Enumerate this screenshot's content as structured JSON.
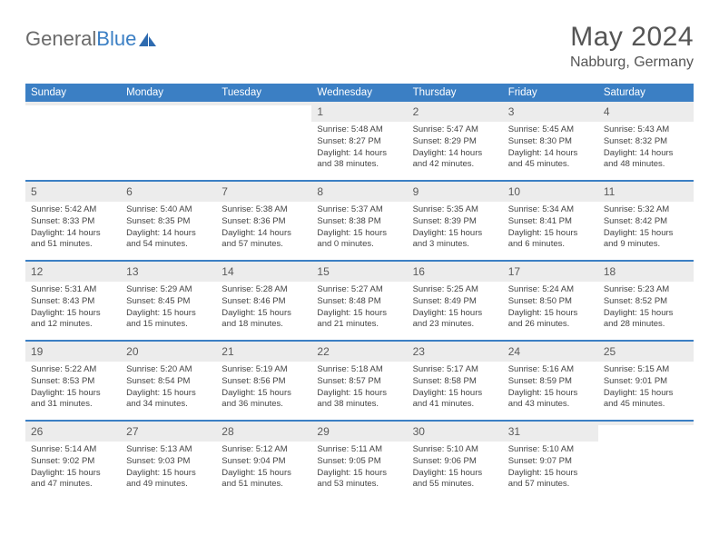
{
  "logo": {
    "text_general": "General",
    "text_blue": "Blue"
  },
  "title": "May 2024",
  "location": "Nabburg, Germany",
  "weekdays": [
    "Sunday",
    "Monday",
    "Tuesday",
    "Wednesday",
    "Thursday",
    "Friday",
    "Saturday"
  ],
  "colors": {
    "header_bg": "#3b7fc4",
    "row_divider": "#3b7fc4",
    "daynum_bg": "#ececec",
    "text": "#3a3a3a"
  },
  "weeks": [
    [
      {
        "n": "",
        "lines": [
          "",
          "",
          "",
          ""
        ]
      },
      {
        "n": "",
        "lines": [
          "",
          "",
          "",
          ""
        ]
      },
      {
        "n": "",
        "lines": [
          "",
          "",
          "",
          ""
        ]
      },
      {
        "n": "1",
        "lines": [
          "Sunrise: 5:48 AM",
          "Sunset: 8:27 PM",
          "Daylight: 14 hours",
          "and 38 minutes."
        ]
      },
      {
        "n": "2",
        "lines": [
          "Sunrise: 5:47 AM",
          "Sunset: 8:29 PM",
          "Daylight: 14 hours",
          "and 42 minutes."
        ]
      },
      {
        "n": "3",
        "lines": [
          "Sunrise: 5:45 AM",
          "Sunset: 8:30 PM",
          "Daylight: 14 hours",
          "and 45 minutes."
        ]
      },
      {
        "n": "4",
        "lines": [
          "Sunrise: 5:43 AM",
          "Sunset: 8:32 PM",
          "Daylight: 14 hours",
          "and 48 minutes."
        ]
      }
    ],
    [
      {
        "n": "5",
        "lines": [
          "Sunrise: 5:42 AM",
          "Sunset: 8:33 PM",
          "Daylight: 14 hours",
          "and 51 minutes."
        ]
      },
      {
        "n": "6",
        "lines": [
          "Sunrise: 5:40 AM",
          "Sunset: 8:35 PM",
          "Daylight: 14 hours",
          "and 54 minutes."
        ]
      },
      {
        "n": "7",
        "lines": [
          "Sunrise: 5:38 AM",
          "Sunset: 8:36 PM",
          "Daylight: 14 hours",
          "and 57 minutes."
        ]
      },
      {
        "n": "8",
        "lines": [
          "Sunrise: 5:37 AM",
          "Sunset: 8:38 PM",
          "Daylight: 15 hours",
          "and 0 minutes."
        ]
      },
      {
        "n": "9",
        "lines": [
          "Sunrise: 5:35 AM",
          "Sunset: 8:39 PM",
          "Daylight: 15 hours",
          "and 3 minutes."
        ]
      },
      {
        "n": "10",
        "lines": [
          "Sunrise: 5:34 AM",
          "Sunset: 8:41 PM",
          "Daylight: 15 hours",
          "and 6 minutes."
        ]
      },
      {
        "n": "11",
        "lines": [
          "Sunrise: 5:32 AM",
          "Sunset: 8:42 PM",
          "Daylight: 15 hours",
          "and 9 minutes."
        ]
      }
    ],
    [
      {
        "n": "12",
        "lines": [
          "Sunrise: 5:31 AM",
          "Sunset: 8:43 PM",
          "Daylight: 15 hours",
          "and 12 minutes."
        ]
      },
      {
        "n": "13",
        "lines": [
          "Sunrise: 5:29 AM",
          "Sunset: 8:45 PM",
          "Daylight: 15 hours",
          "and 15 minutes."
        ]
      },
      {
        "n": "14",
        "lines": [
          "Sunrise: 5:28 AM",
          "Sunset: 8:46 PM",
          "Daylight: 15 hours",
          "and 18 minutes."
        ]
      },
      {
        "n": "15",
        "lines": [
          "Sunrise: 5:27 AM",
          "Sunset: 8:48 PM",
          "Daylight: 15 hours",
          "and 21 minutes."
        ]
      },
      {
        "n": "16",
        "lines": [
          "Sunrise: 5:25 AM",
          "Sunset: 8:49 PM",
          "Daylight: 15 hours",
          "and 23 minutes."
        ]
      },
      {
        "n": "17",
        "lines": [
          "Sunrise: 5:24 AM",
          "Sunset: 8:50 PM",
          "Daylight: 15 hours",
          "and 26 minutes."
        ]
      },
      {
        "n": "18",
        "lines": [
          "Sunrise: 5:23 AM",
          "Sunset: 8:52 PM",
          "Daylight: 15 hours",
          "and 28 minutes."
        ]
      }
    ],
    [
      {
        "n": "19",
        "lines": [
          "Sunrise: 5:22 AM",
          "Sunset: 8:53 PM",
          "Daylight: 15 hours",
          "and 31 minutes."
        ]
      },
      {
        "n": "20",
        "lines": [
          "Sunrise: 5:20 AM",
          "Sunset: 8:54 PM",
          "Daylight: 15 hours",
          "and 34 minutes."
        ]
      },
      {
        "n": "21",
        "lines": [
          "Sunrise: 5:19 AM",
          "Sunset: 8:56 PM",
          "Daylight: 15 hours",
          "and 36 minutes."
        ]
      },
      {
        "n": "22",
        "lines": [
          "Sunrise: 5:18 AM",
          "Sunset: 8:57 PM",
          "Daylight: 15 hours",
          "and 38 minutes."
        ]
      },
      {
        "n": "23",
        "lines": [
          "Sunrise: 5:17 AM",
          "Sunset: 8:58 PM",
          "Daylight: 15 hours",
          "and 41 minutes."
        ]
      },
      {
        "n": "24",
        "lines": [
          "Sunrise: 5:16 AM",
          "Sunset: 8:59 PM",
          "Daylight: 15 hours",
          "and 43 minutes."
        ]
      },
      {
        "n": "25",
        "lines": [
          "Sunrise: 5:15 AM",
          "Sunset: 9:01 PM",
          "Daylight: 15 hours",
          "and 45 minutes."
        ]
      }
    ],
    [
      {
        "n": "26",
        "lines": [
          "Sunrise: 5:14 AM",
          "Sunset: 9:02 PM",
          "Daylight: 15 hours",
          "and 47 minutes."
        ]
      },
      {
        "n": "27",
        "lines": [
          "Sunrise: 5:13 AM",
          "Sunset: 9:03 PM",
          "Daylight: 15 hours",
          "and 49 minutes."
        ]
      },
      {
        "n": "28",
        "lines": [
          "Sunrise: 5:12 AM",
          "Sunset: 9:04 PM",
          "Daylight: 15 hours",
          "and 51 minutes."
        ]
      },
      {
        "n": "29",
        "lines": [
          "Sunrise: 5:11 AM",
          "Sunset: 9:05 PM",
          "Daylight: 15 hours",
          "and 53 minutes."
        ]
      },
      {
        "n": "30",
        "lines": [
          "Sunrise: 5:10 AM",
          "Sunset: 9:06 PM",
          "Daylight: 15 hours",
          "and 55 minutes."
        ]
      },
      {
        "n": "31",
        "lines": [
          "Sunrise: 5:10 AM",
          "Sunset: 9:07 PM",
          "Daylight: 15 hours",
          "and 57 minutes."
        ]
      },
      {
        "n": "",
        "lines": [
          "",
          "",
          "",
          ""
        ]
      }
    ]
  ]
}
